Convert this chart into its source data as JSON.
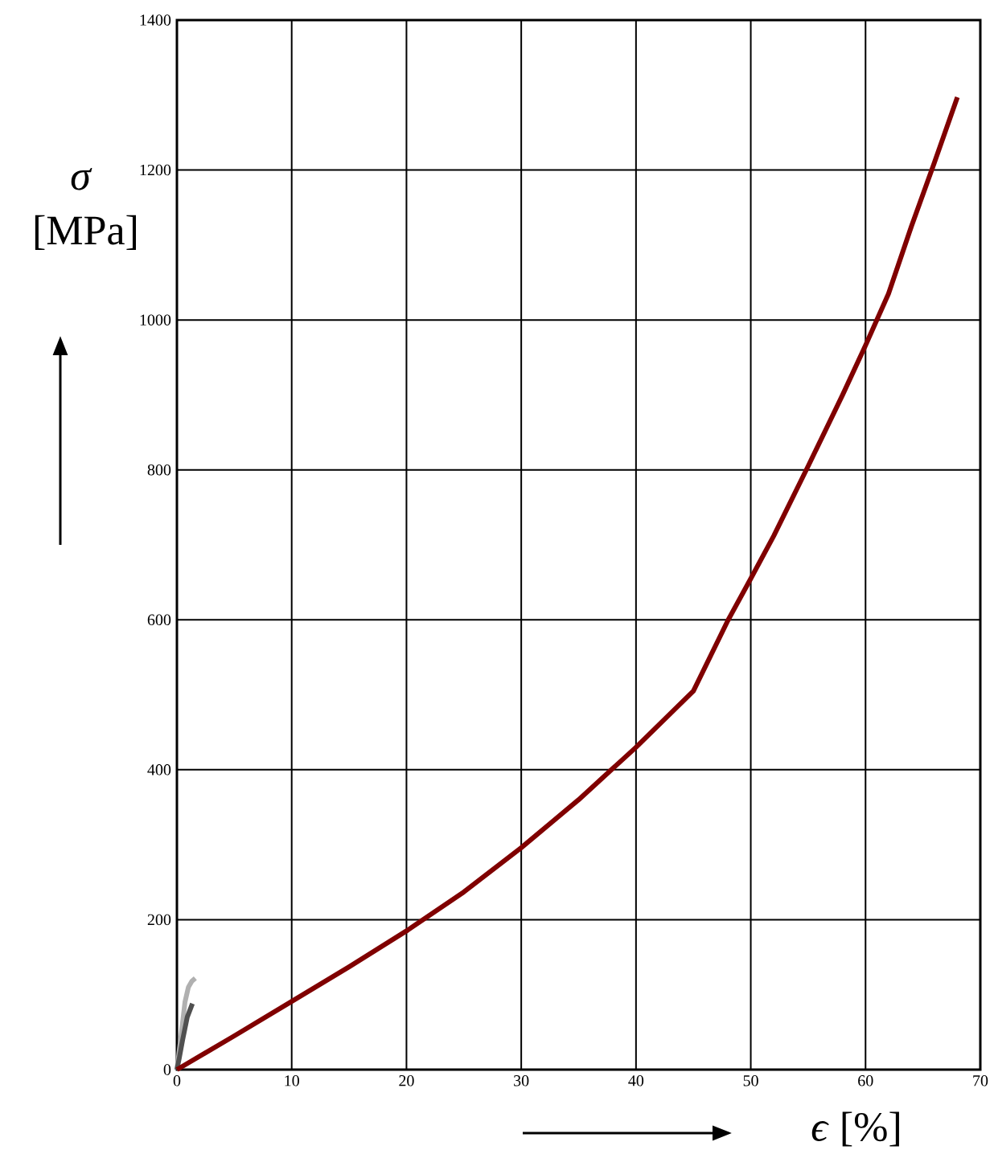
{
  "chart_data": {
    "type": "line",
    "xlabel": "*ϵ* [%]",
    "ylabel": "*σ* [MPa]",
    "xlim": [
      0,
      70
    ],
    "ylim": [
      0,
      1400
    ],
    "xticks": [
      0,
      10,
      20,
      30,
      40,
      50,
      60,
      70
    ],
    "yticks": [
      0,
      200,
      400,
      600,
      800,
      1000,
      1200,
      1400
    ],
    "grid": true,
    "series": [
      {
        "color": "#b0b0b0",
        "x": [
          0,
          0.2,
          0.4,
          0.7,
          1.0,
          1.3,
          1.6
        ],
        "values": [
          0,
          25,
          50,
          90,
          110,
          118,
          122
        ]
      },
      {
        "color": "#505050",
        "x": [
          0,
          0.2,
          0.5,
          0.9,
          1.1,
          1.35
        ],
        "values": [
          0,
          15,
          40,
          70,
          78,
          88
        ]
      },
      {
        "color": "#800000",
        "x": [
          0,
          5,
          10,
          15,
          20,
          25,
          30,
          35,
          40,
          42,
          45,
          48,
          50,
          52,
          55,
          58,
          60,
          62,
          64,
          66,
          68
        ],
        "values": [
          0,
          45,
          91,
          137,
          185,
          237,
          296,
          360,
          430,
          460,
          505,
          599,
          655,
          712,
          805,
          900,
          966,
          1035,
          1125,
          1210,
          1297
        ]
      }
    ]
  }
}
